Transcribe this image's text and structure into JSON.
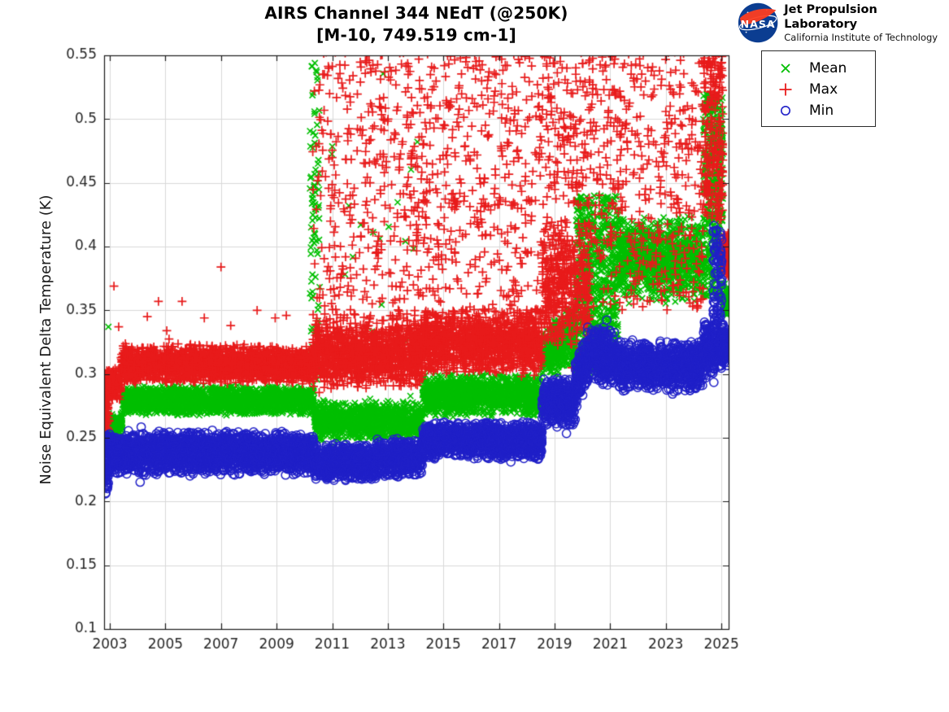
{
  "header": {
    "title_line1": "AIRS Channel 344 NEdT (@250K)",
    "title_line2": "[M-10, 749.519 cm-1]",
    "logo": {
      "org": "NASA",
      "line1": "Jet Propulsion Laboratory",
      "line2": "California Institute of Technology",
      "nasa_blue": "#0b3d91",
      "nasa_red": "#fc3d21"
    }
  },
  "legend": {
    "entries": [
      {
        "label": "Mean",
        "marker": "x",
        "color": "#00bf00"
      },
      {
        "label": "Max",
        "marker": "plus",
        "color": "#e81b1b"
      },
      {
        "label": "Min",
        "marker": "circle",
        "color": "#2020c8"
      }
    ]
  },
  "chart_data": {
    "type": "scatter",
    "title": "AIRS Channel 344 NEdT (@250K)",
    "subtitle": "[M-10, 749.519 cm-1]",
    "xlabel": "",
    "ylabel": "Noise Equivalent Delta Temperature (K)",
    "xlim": [
      2002.795,
      2025.26
    ],
    "ylim": [
      0.1,
      0.55
    ],
    "grid": true,
    "grid_color": "#d9d9d9",
    "axis_color": "#1a1a1a",
    "tick_label_color": "#262626",
    "x_ticks": [
      2003,
      2005,
      2007,
      2009,
      2011,
      2013,
      2015,
      2017,
      2019,
      2021,
      2023,
      2025
    ],
    "x_tick_labels": [
      "2003",
      "2005",
      "2007",
      "2009",
      "2011",
      "2013",
      "2015",
      "2017",
      "2019",
      "2021",
      "2023",
      "2025"
    ],
    "y_ticks": [
      0.1,
      0.15,
      0.2,
      0.25,
      0.3,
      0.35,
      0.4,
      0.45,
      0.5,
      0.55
    ],
    "y_tick_labels": [
      "0.1",
      "0.15",
      "0.2",
      "0.25",
      "0.3",
      "0.35",
      "0.4",
      "0.45",
      "0.5",
      "0.55"
    ],
    "legend_position": "outside-top-right",
    "series": [
      {
        "name": "Mean",
        "marker": "x",
        "color": "#00bf00",
        "segments": [
          {
            "t0": 2002.8,
            "t1": 2003.45,
            "lo": 0.2515,
            "hi": 0.27,
            "n": 210,
            "dist": "band"
          },
          {
            "t0": 2003.45,
            "t1": 2010.35,
            "lo": 0.267,
            "hi": 0.2915,
            "n": 2150,
            "dist": "band"
          },
          {
            "t0": 2010.2,
            "t1": 2010.55,
            "lo": 0.295,
            "hi": 0.545,
            "n": 95,
            "dist": "uniform"
          },
          {
            "t0": 2010.35,
            "t1": 2014.25,
            "lo": 0.247,
            "hi": 0.279,
            "n": 1180,
            "dist": "band"
          },
          {
            "t0": 2010.6,
            "t1": 2014.25,
            "lo": 0.3,
            "hi": 0.54,
            "n": 22,
            "dist": "uniform"
          },
          {
            "t0": 2014.25,
            "t1": 2018.55,
            "lo": 0.266,
            "hi": 0.301,
            "n": 1320,
            "dist": "band"
          },
          {
            "t0": 2018.55,
            "t1": 2019.75,
            "lo": 0.293,
            "hi": 0.337,
            "lo1": 0.303,
            "hi1": 0.356,
            "n": 390,
            "dist": "band"
          },
          {
            "t0": 2019.75,
            "t1": 2021.3,
            "lo": 0.3,
            "hi": 0.44,
            "n": 700,
            "dist": "uniform"
          },
          {
            "t0": 2021.3,
            "t1": 2024.35,
            "lo": 0.355,
            "hi": 0.425,
            "n": 1050,
            "dist": "band"
          },
          {
            "t0": 2024.35,
            "t1": 2025.05,
            "lo": 0.36,
            "hi": 0.52,
            "n": 430,
            "dist": "uniform"
          },
          {
            "t0": 2025.05,
            "t1": 2025.26,
            "lo": 0.345,
            "hi": 0.372,
            "n": 100,
            "dist": "band"
          }
        ],
        "outliers": [
          [
            2002.95,
            0.337
          ]
        ]
      },
      {
        "name": "Max",
        "marker": "plus",
        "color": "#e81b1b",
        "segments": [
          {
            "t0": 2002.8,
            "t1": 2002.98,
            "lo": 0.256,
            "hi": 0.303,
            "n": 95,
            "dist": "uniform"
          },
          {
            "t0": 2002.95,
            "t1": 2003.4,
            "lo": 0.278,
            "hi": 0.306,
            "n": 170,
            "dist": "band"
          },
          {
            "t0": 2003.4,
            "t1": 2010.35,
            "lo": 0.292,
            "hi": 0.3235,
            "n": 2200,
            "dist": "band"
          },
          {
            "t0": 2010.3,
            "t1": 2014.25,
            "lo": 0.287,
            "hi": 0.345,
            "n": 1250,
            "dist": "band"
          },
          {
            "t0": 2010.3,
            "t1": 2014.25,
            "lo": 0.34,
            "hi": 0.558,
            "n": 380,
            "dist": "uniform"
          },
          {
            "t0": 2014.25,
            "t1": 2018.55,
            "lo": 0.298,
            "hi": 0.352,
            "n": 1320,
            "dist": "band"
          },
          {
            "t0": 2014.25,
            "t1": 2018.55,
            "lo": 0.35,
            "hi": 0.558,
            "n": 400,
            "dist": "uniform"
          },
          {
            "t0": 2018.55,
            "t1": 2020.3,
            "lo": 0.315,
            "hi": 0.43,
            "n": 480,
            "dist": "band"
          },
          {
            "t0": 2018.55,
            "t1": 2020.3,
            "lo": 0.43,
            "hi": 0.558,
            "n": 150,
            "dist": "uniform"
          },
          {
            "t0": 2020.3,
            "t1": 2024.35,
            "lo": 0.38,
            "hi": 0.558,
            "n": 380,
            "dist": "uniform"
          },
          {
            "t0": 2020.3,
            "t1": 2024.35,
            "lo": 0.35,
            "hi": 0.382,
            "n": 60,
            "dist": "uniform"
          },
          {
            "t0": 2024.35,
            "t1": 2025.05,
            "lo": 0.42,
            "hi": 0.558,
            "n": 260,
            "dist": "uniform"
          },
          {
            "t0": 2025.05,
            "t1": 2025.26,
            "lo": 0.375,
            "hi": 0.412,
            "n": 170,
            "dist": "band"
          }
        ],
        "outliers": [
          [
            2003.15,
            0.369
          ],
          [
            2004.75,
            0.357
          ],
          [
            2005.6,
            0.357
          ],
          [
            2004.35,
            0.345
          ],
          [
            2006.4,
            0.344
          ],
          [
            2007.0,
            0.384
          ],
          [
            2007.35,
            0.338
          ],
          [
            2008.3,
            0.35
          ],
          [
            2008.95,
            0.344
          ],
          [
            2009.35,
            0.346
          ],
          [
            2005.05,
            0.334
          ],
          [
            2003.32,
            0.337
          ]
        ]
      },
      {
        "name": "Min",
        "marker": "circle",
        "color": "#2020c8",
        "segments": [
          {
            "t0": 2002.8,
            "t1": 2002.95,
            "lo": 0.206,
            "hi": 0.252,
            "n": 70,
            "dist": "uniform"
          },
          {
            "t0": 2002.9,
            "t1": 2010.35,
            "lo": 0.22,
            "hi": 0.256,
            "n": 2300,
            "dist": "band"
          },
          {
            "t0": 2010.35,
            "t1": 2012.6,
            "lo": 0.2145,
            "hi": 0.246,
            "n": 700,
            "dist": "band"
          },
          {
            "t0": 2012.6,
            "t1": 2014.25,
            "lo": 0.219,
            "hi": 0.25,
            "n": 520,
            "dist": "band"
          },
          {
            "t0": 2014.25,
            "t1": 2018.55,
            "lo": 0.2325,
            "hi": 0.263,
            "n": 1300,
            "dist": "band"
          },
          {
            "t0": 2018.55,
            "t1": 2019.75,
            "lo": 0.258,
            "hi": 0.2975,
            "n": 380,
            "dist": "band"
          },
          {
            "t0": 2019.75,
            "t1": 2020.35,
            "lo": 0.272,
            "hi": 0.312,
            "lo1": 0.295,
            "hi1": 0.345,
            "n": 190,
            "dist": "band"
          },
          {
            "t0": 2020.35,
            "t1": 2021.3,
            "lo": 0.293,
            "hi": 0.345,
            "lo1": 0.288,
            "hi1": 0.332,
            "n": 300,
            "dist": "band"
          },
          {
            "t0": 2021.3,
            "t1": 2024.35,
            "lo": 0.285,
            "hi": 0.327,
            "n": 950,
            "dist": "band"
          },
          {
            "t0": 2024.35,
            "t1": 2024.75,
            "lo": 0.292,
            "hi": 0.345,
            "n": 150,
            "dist": "band"
          },
          {
            "t0": 2024.7,
            "t1": 2025.02,
            "lo": 0.3,
            "hi": 0.418,
            "n": 120,
            "dist": "uniform"
          },
          {
            "t0": 2024.98,
            "t1": 2025.26,
            "lo": 0.305,
            "hi": 0.34,
            "n": 130,
            "dist": "band"
          }
        ],
        "outliers": []
      }
    ]
  }
}
